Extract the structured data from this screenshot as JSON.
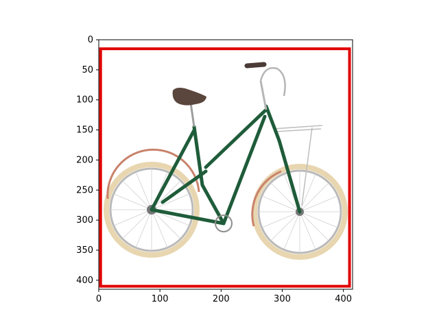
{
  "figure": {
    "image_subject": "green step-through city bicycle with brown saddle, cream tires and rear rack",
    "colors": {
      "frame": "#1f5c3a",
      "saddle": "#5a463c",
      "tire": "#e8d6b0",
      "fender": "#c9826b",
      "bbox": "#e00000",
      "axes": "#000000"
    },
    "bounding_box": {
      "x0": 3,
      "y0": 15,
      "x1": 410,
      "y1": 410,
      "color_name": "red"
    },
    "x_axis": {
      "range": [
        0,
        415
      ],
      "ticks": [
        0,
        100,
        200,
        300,
        400
      ],
      "tick_labels": [
        "0",
        "100",
        "200",
        "300",
        "400"
      ]
    },
    "y_axis": {
      "range": [
        0,
        415
      ],
      "inverted": true,
      "ticks": [
        0,
        50,
        100,
        150,
        200,
        250,
        300,
        350,
        400
      ],
      "tick_labels": [
        "0",
        "50",
        "100",
        "150",
        "200",
        "250",
        "300",
        "350",
        "400"
      ]
    }
  }
}
